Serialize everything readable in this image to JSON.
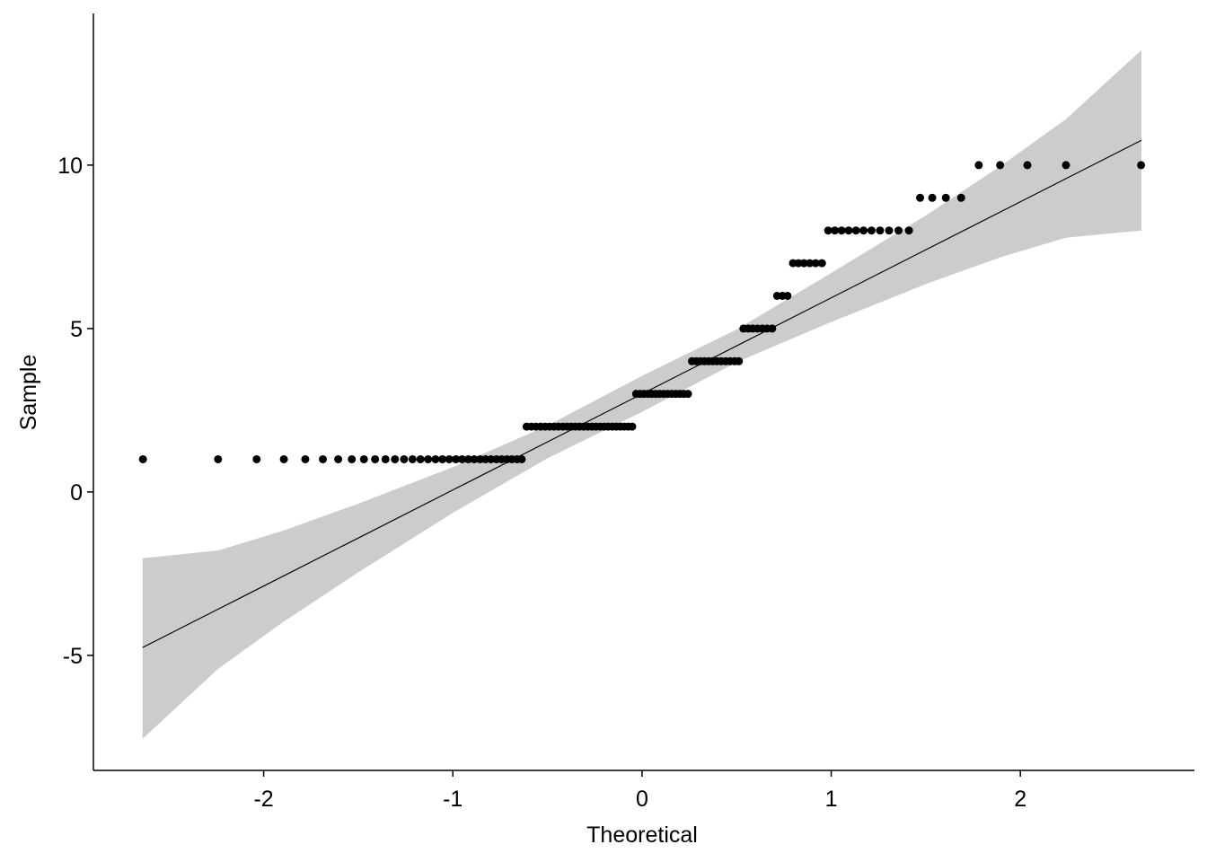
{
  "chart_data": {
    "type": "scatter",
    "x_label": "Theoretical",
    "y_label": "Sample",
    "x": [
      -2.638,
      -2.241,
      -2.037,
      -1.893,
      -1.78,
      -1.687,
      -1.606,
      -1.534,
      -1.47,
      -1.411,
      -1.356,
      -1.306,
      -1.258,
      -1.213,
      -1.171,
      -1.131,
      -1.092,
      -1.055,
      -1.019,
      -0.984,
      -0.951,
      -0.918,
      -0.887,
      -0.856,
      -0.827,
      -0.798,
      -0.769,
      -0.742,
      -0.714,
      -0.688,
      -0.661,
      -0.636,
      -0.61,
      -0.585,
      -0.561,
      -0.536,
      -0.512,
      -0.489,
      -0.465,
      -0.442,
      -0.419,
      -0.396,
      -0.374,
      -0.352,
      -0.33,
      -0.308,
      -0.286,
      -0.264,
      -0.243,
      -0.221,
      -0.2,
      -0.179,
      -0.157,
      -0.136,
      -0.115,
      -0.094,
      -0.073,
      -0.052,
      -0.031,
      -0.01,
      0.01,
      0.031,
      0.052,
      0.073,
      0.094,
      0.115,
      0.136,
      0.157,
      0.179,
      0.2,
      0.221,
      0.243,
      0.264,
      0.286,
      0.308,
      0.33,
      0.352,
      0.374,
      0.396,
      0.419,
      0.442,
      0.465,
      0.489,
      0.512,
      0.536,
      0.561,
      0.585,
      0.61,
      0.636,
      0.661,
      0.688,
      0.714,
      0.742,
      0.769,
      0.798,
      0.827,
      0.856,
      0.887,
      0.918,
      0.951,
      0.984,
      1.019,
      1.055,
      1.092,
      1.131,
      1.171,
      1.213,
      1.258,
      1.306,
      1.356,
      1.411,
      1.47,
      1.534,
      1.606,
      1.687,
      1.78,
      1.893,
      2.037,
      2.241,
      2.638
    ],
    "values": [
      1,
      1,
      1,
      1,
      1,
      1,
      1,
      1,
      1,
      1,
      1,
      1,
      1,
      1,
      1,
      1,
      1,
      1,
      1,
      1,
      1,
      1,
      1,
      1,
      1,
      1,
      1,
      1,
      1,
      1,
      1,
      1,
      2,
      2,
      2,
      2,
      2,
      2,
      2,
      2,
      2,
      2,
      2,
      2,
      2,
      2,
      2,
      2,
      2,
      2,
      2,
      2,
      2,
      2,
      2,
      2,
      2,
      2,
      3,
      3,
      3,
      3,
      3,
      3,
      3,
      3,
      3,
      3,
      3,
      3,
      3,
      3,
      4,
      4,
      4,
      4,
      4,
      4,
      4,
      4,
      4,
      4,
      4,
      4,
      5,
      5,
      5,
      5,
      5,
      5,
      5,
      6,
      6,
      6,
      7,
      7,
      7,
      7,
      7,
      7,
      8,
      8,
      8,
      8,
      8,
      8,
      8,
      8,
      8,
      8,
      8,
      9,
      9,
      9,
      9,
      10,
      10,
      10,
      10,
      10
    ],
    "color": "#000000",
    "line": {
      "x": [
        -2.64,
        2.64
      ],
      "y": [
        -4.76,
        10.76
      ]
    },
    "band": {
      "color": "#cccccc",
      "x": [
        -2.64,
        -2.24,
        -1.9,
        -1.5,
        -1,
        -0.5,
        0,
        0.5,
        1,
        1.5,
        1.9,
        2.24,
        2.64
      ],
      "lower": [
        -7.55,
        -5.41,
        -3.99,
        -2.46,
        -0.64,
        1.03,
        2.45,
        3.97,
        5.2,
        6.36,
        7.19,
        7.78,
        8.0
      ],
      "upper": [
        -2.03,
        -1.79,
        -1.19,
        -0.36,
        0.76,
        2.03,
        3.55,
        4.97,
        6.7,
        8.46,
        9.99,
        11.4,
        13.52
      ]
    },
    "xlim": [
      -2.9,
      2.92
    ],
    "ylim": [
      -8.52,
      14.64
    ],
    "xticks": [
      -2,
      -1,
      0,
      1,
      2
    ],
    "yticks": [
      -5,
      0,
      5,
      10
    ]
  }
}
